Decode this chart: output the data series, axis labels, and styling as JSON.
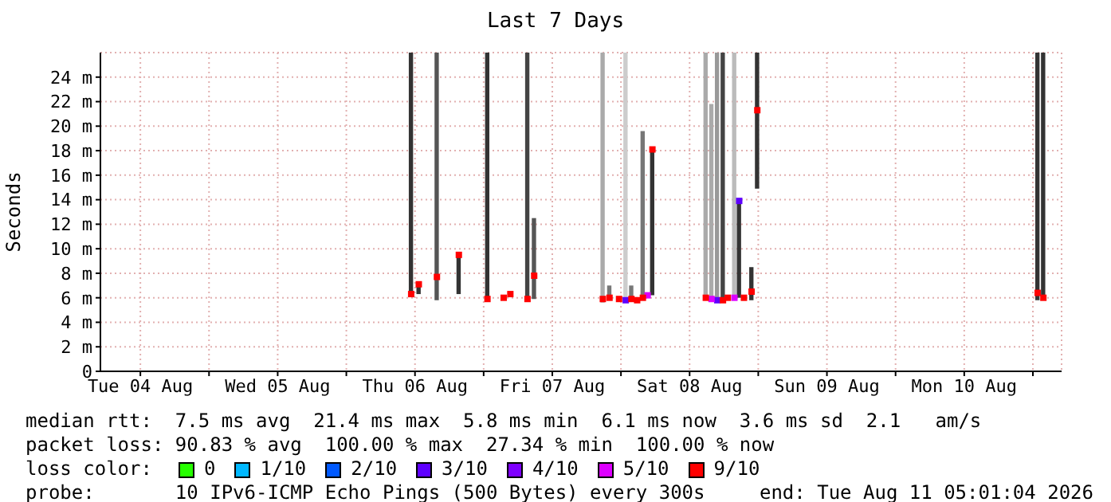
{
  "chart_data": {
    "type": "scatter",
    "title": "Last 7 Days",
    "ylabel": "Seconds",
    "xlim": [
      "2026-08-04T05:01",
      "2026-08-11T05:01"
    ],
    "xticks": [
      {
        "value": "2026-08-04T12:00",
        "label": "Tue 04 Aug"
      },
      {
        "value": "2026-08-05T00:00",
        "label": null
      },
      {
        "value": "2026-08-05T12:00",
        "label": "Wed 05 Aug"
      },
      {
        "value": "2026-08-06T00:00",
        "label": null
      },
      {
        "value": "2026-08-06T12:00",
        "label": "Thu 06 Aug"
      },
      {
        "value": "2026-08-07T00:00",
        "label": null
      },
      {
        "value": "2026-08-07T12:00",
        "label": "Fri 07 Aug"
      },
      {
        "value": "2026-08-08T00:00",
        "label": null
      },
      {
        "value": "2026-08-08T12:00",
        "label": "Sat 08 Aug"
      },
      {
        "value": "2026-08-09T00:00",
        "label": null
      },
      {
        "value": "2026-08-09T12:00",
        "label": "Sun 09 Aug"
      },
      {
        "value": "2026-08-10T00:00",
        "label": null
      },
      {
        "value": "2026-08-10T12:00",
        "label": "Mon 10 Aug"
      },
      {
        "value": "2026-08-11T00:00",
        "label": null
      }
    ],
    "ylim": [
      0,
      26
    ],
    "yticks": [
      0,
      {
        "value": 2,
        "label": "2 m"
      },
      {
        "value": 4,
        "label": "4 m"
      },
      {
        "value": 6,
        "label": "6 m"
      },
      {
        "value": 8,
        "label": "8 m"
      },
      {
        "value": 10,
        "label": "10 m"
      },
      {
        "value": 12,
        "label": "12 m"
      },
      {
        "value": 14,
        "label": "14 m"
      },
      {
        "value": 16,
        "label": "16 m"
      },
      {
        "value": 18,
        "label": "18 m"
      },
      {
        "value": 20,
        "label": "20 m"
      },
      {
        "value": 22,
        "label": "22 m"
      },
      {
        "value": 24,
        "label": "24 m"
      }
    ],
    "grid": true,
    "marker": "square",
    "legend": "bottom",
    "legend_title": "loss color:",
    "series": [
      {
        "type": "bar",
        "x": [
          "2026-08-06T11:20",
          "2026-08-06T12:40",
          "2026-08-06T15:50",
          "2026-08-06T19:40",
          "2026-08-07T00:40",
          "2026-08-07T07:40",
          "2026-08-07T08:50",
          "2026-08-07T20:50",
          "2026-08-07T22:00",
          "2026-08-08T00:50",
          "2026-08-08T01:50",
          "2026-08-08T03:50",
          "2026-08-08T05:30",
          "2026-08-08T14:50",
          "2026-08-08T15:50",
          "2026-08-08T16:50",
          "2026-08-08T17:50",
          "2026-08-08T19:50",
          "2026-08-08T20:40",
          "2026-08-08T22:50",
          "2026-08-08T23:50",
          "2026-08-11T00:50",
          "2026-08-11T01:50"
        ],
        "base": [
          6.2,
          6.3,
          5.8,
          6.3,
          5.9,
          5.9,
          5.9,
          5.6,
          5.9,
          5.8,
          5.8,
          5.8,
          6.2,
          5.8,
          5.8,
          5.8,
          5.8,
          5.8,
          6.0,
          5.8,
          14.9,
          5.8,
          5.8
        ],
        "values": [
          19.8,
          0.8,
          20.2,
          3.3,
          20.1,
          20.1,
          6.6,
          20.4,
          1.1,
          20.2,
          1.2,
          13.8,
          11.9,
          20.2,
          16.0,
          20.2,
          20.2,
          20.2,
          7.9,
          2.7,
          11.1,
          20.2,
          20.2
        ],
        "colors": [
          "#333333",
          "#333333",
          "#555555",
          "#333333",
          "#333333",
          "#444444",
          "#555555",
          "#aaaaaa",
          "#777777",
          "#cccccc",
          "#777777",
          "#777777",
          "#333333",
          "#aaaaaa",
          "#aaaaaa",
          "#999999",
          "#444444",
          "#bbbbbb",
          "#333333",
          "#333333",
          "#333333",
          "#333333",
          "#333333"
        ]
      },
      {
        "name": "0",
        "color": "#26ff00"
      },
      {
        "name": "1/10",
        "color": "#00b8ff"
      },
      {
        "name": "2/10",
        "color": "#0059ff"
      },
      {
        "name": "3/10",
        "color": "#5e00ff",
        "x": [
          "2026-08-08T00:50",
          "2026-08-08T16:50",
          "2026-08-08T20:40"
        ],
        "values": [
          5.8,
          5.8,
          13.9
        ]
      },
      {
        "name": "4/10",
        "color": "#7e00ff"
      },
      {
        "name": "5/10",
        "color": "#dd00ff",
        "x": [
          "2026-08-08T04:40",
          "2026-08-08T15:50",
          "2026-08-08T19:50"
        ],
        "values": [
          6.2,
          5.9,
          6.0
        ]
      },
      {
        "name": "9/10",
        "color": "#ff0000",
        "x": [
          "2026-08-06T11:20",
          "2026-08-06T12:40",
          "2026-08-06T15:50",
          "2026-08-06T19:40",
          "2026-08-07T00:40",
          "2026-08-07T03:30",
          "2026-08-07T04:40",
          "2026-08-07T07:40",
          "2026-08-07T08:50",
          "2026-08-07T20:50",
          "2026-08-07T22:00",
          "2026-08-07T23:40",
          "2026-08-08T01:50",
          "2026-08-08T02:50",
          "2026-08-08T03:50",
          "2026-08-08T05:30",
          "2026-08-08T14:50",
          "2026-08-08T17:50",
          "2026-08-08T18:40",
          "2026-08-08T21:30",
          "2026-08-08T22:50",
          "2026-08-08T23:50",
          "2026-08-11T00:50",
          "2026-08-11T01:50"
        ],
        "values": [
          6.3,
          7.1,
          7.7,
          9.5,
          5.9,
          6.0,
          6.3,
          5.9,
          7.8,
          5.9,
          6.0,
          5.9,
          5.9,
          5.8,
          6.0,
          18.1,
          6.0,
          5.8,
          6.0,
          6.0,
          6.5,
          21.3,
          6.4,
          6.0
        ]
      }
    ],
    "annotations": [
      "median rtt:  7.5 ms avg  21.4 ms max  5.8 ms min  6.1 ms now  3.6 ms sd  2.1   am/s",
      "packet loss: 90.83 % avg  100.00 % max  27.34 % min  100.00 % now",
      "probe:       10 IPv6-ICMP Echo Pings (500 Bytes) every 300s",
      "end: Tue Aug 11 05:01:04 2026"
    ]
  }
}
